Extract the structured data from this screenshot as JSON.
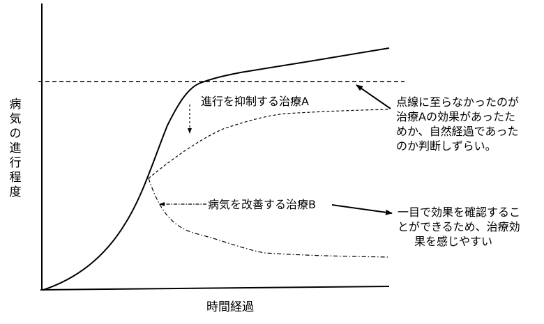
{
  "axes": {
    "y_label": "病気の進行程度",
    "x_label": "時間経過"
  },
  "curves": {
    "treatment_a_label": "進行を抑制する治療A",
    "treatment_b_label": "病気を改善する治療B"
  },
  "notes": {
    "dashed_note": [
      "点線に至らなかったのが",
      "治療Aの効果があったた",
      "めか、自然経過であった",
      "のか判断しずらい。"
    ],
    "improve_note": [
      "一目で効果を確認するこ",
      "とができるため、治療効",
      "果を感じやすい"
    ]
  }
}
